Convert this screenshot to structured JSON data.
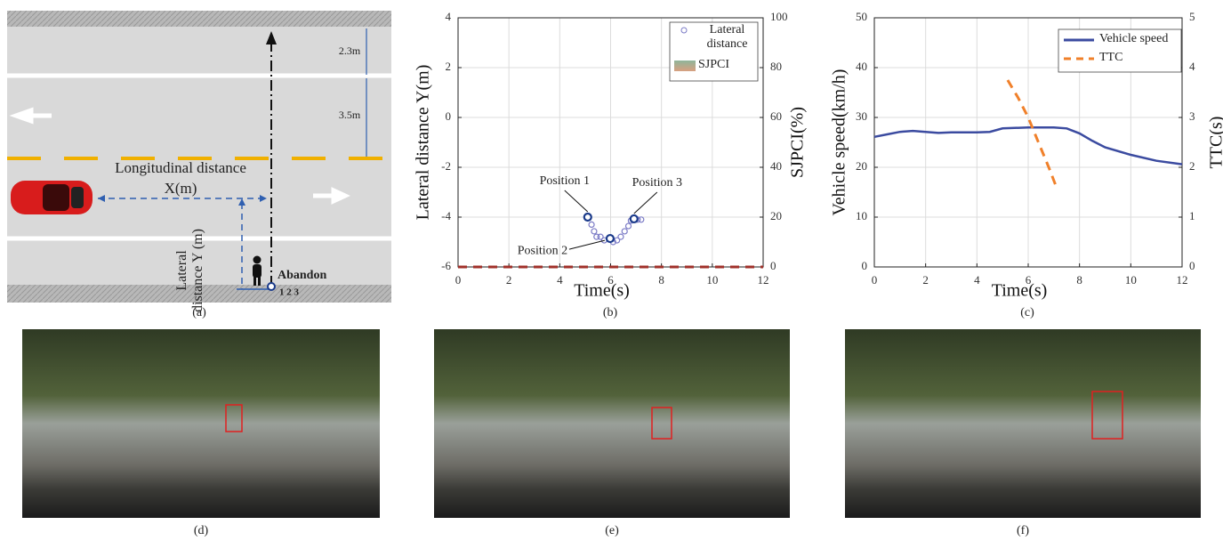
{
  "diagram": {
    "longitudinal_label": "Longitudinal distance",
    "x_label": "X(m)",
    "lateral_label": "Lateral distance Y (m)",
    "lane_widths": [
      "2.3m",
      "3.5m"
    ],
    "abandon": "Abandon",
    "positions": "1 2 3"
  },
  "chart_data": [
    {
      "type": "scatter",
      "xlabel": "Time(s)",
      "ylabel": "Lateral distance Y(m)",
      "y2label": "SJPCI(%)",
      "xlim": [
        0,
        12
      ],
      "xticks": [
        0,
        2,
        4,
        6,
        8,
        10,
        12
      ],
      "ylim": [
        -6,
        4
      ],
      "yticks": [
        -6,
        -4,
        -2,
        0,
        2,
        4
      ],
      "y2lim": [
        0,
        100
      ],
      "y2ticks": [
        0,
        20,
        40,
        60,
        80,
        100
      ],
      "grid": true,
      "legend": "upper right",
      "annotations": [
        "Position 1",
        "Position 2",
        "Position 3"
      ],
      "series": [
        {
          "name": "Lateral distance",
          "color": "#7b7bc6",
          "marker": "circle",
          "x": [
            5.1,
            5.25,
            5.35,
            5.45,
            5.6,
            5.75,
            5.98,
            6.1,
            6.25,
            6.4,
            6.55,
            6.7,
            6.8,
            6.92,
            7.06,
            7.2
          ],
          "values": [
            -4.0,
            -4.3,
            -4.57,
            -4.79,
            -4.79,
            -4.93,
            -4.86,
            -5.0,
            -4.93,
            -4.79,
            -4.57,
            -4.36,
            -4.14,
            -4.07,
            -4.1,
            -4.1
          ]
        },
        {
          "name": "SJPCI",
          "color": "#a0302a",
          "axis": "y2",
          "dashed": true,
          "x": [
            0,
            12
          ],
          "values": [
            0,
            0
          ]
        }
      ]
    },
    {
      "type": "line",
      "xlabel": "Time(s)",
      "ylabel": "Vehicle  speed(km/h)",
      "y2label": "TTC(s)",
      "xlim": [
        0,
        12
      ],
      "xticks": [
        0,
        2,
        4,
        6,
        8,
        10,
        12
      ],
      "ylim": [
        0,
        50
      ],
      "yticks": [
        0,
        10,
        20,
        30,
        40,
        50
      ],
      "y2lim": [
        0,
        5
      ],
      "y2ticks": [
        0,
        1,
        2,
        3,
        4,
        5
      ],
      "grid": true,
      "legend": "upper right",
      "series": [
        {
          "name": "Vehicle speed",
          "color": "#3b4ba0",
          "x": [
            0,
            0.5,
            1,
            1.5,
            2,
            2.5,
            3,
            4,
            4.5,
            5,
            6,
            7,
            7.5,
            8,
            8.5,
            9,
            10,
            11,
            12
          ],
          "values": [
            26.1,
            26.6,
            27.1,
            27.3,
            27.1,
            26.9,
            27,
            27,
            27.1,
            27.8,
            28,
            28,
            27.8,
            26.8,
            25.3,
            24,
            22.5,
            21.3,
            20.6
          ]
        },
        {
          "name": "TTC",
          "color": "#f0802a",
          "axis": "y2",
          "dashed": true,
          "x": [
            5.2,
            5.6,
            6.0,
            6.4,
            6.8,
            7.1
          ],
          "values": [
            3.75,
            3.4,
            3.0,
            2.5,
            2.0,
            1.6
          ]
        }
      ]
    }
  ],
  "captions": [
    "(a)",
    "(b)",
    "(c)",
    "(d)",
    "(e)",
    "(f)"
  ]
}
